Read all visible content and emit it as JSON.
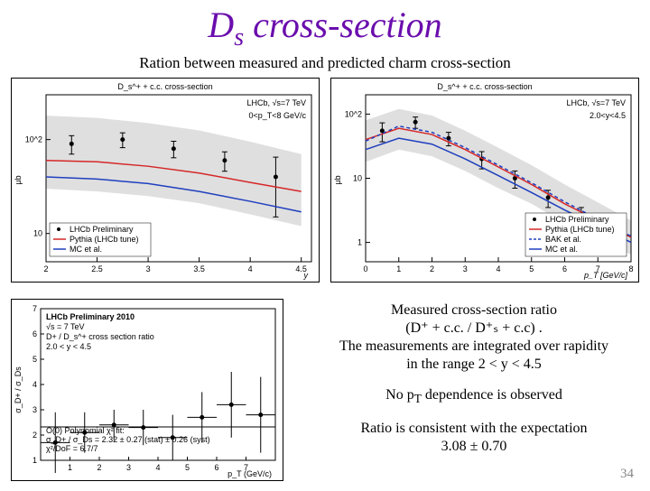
{
  "title_html": "D<sub>s</sub> cross-section",
  "subtitle": "Ration between measured and predicted charm cross-section",
  "page_number": "34",
  "chart_left": {
    "type": "line-scatter",
    "top_title": "D_s^+ + c.c. cross-section",
    "ylabel": "μb",
    "xlabel": "y",
    "yscale": "log",
    "ylim": [
      5,
      300
    ],
    "xlim": [
      2.0,
      4.6
    ],
    "xticks": [
      2,
      2.5,
      3,
      3.5,
      4,
      4.5
    ],
    "header_text": "LHCb, √s=7 TeV",
    "cut_text": "0<p_T<8 GeV/c",
    "band_color": "#d9d9d9",
    "series": [
      {
        "name": "LHCb Preliminary",
        "type": "points",
        "color": "#000000",
        "x": [
          2.25,
          2.75,
          3.25,
          3.75,
          4.25
        ],
        "y": [
          90,
          100,
          80,
          60,
          40
        ],
        "yerr": [
          20,
          18,
          16,
          14,
          25
        ]
      },
      {
        "name": "Pythia (LHCb tune)",
        "type": "line",
        "color": "#d62728",
        "dash": "solid",
        "x": [
          2.0,
          2.5,
          3.0,
          3.5,
          4.0,
          4.5
        ],
        "y": [
          60,
          58,
          52,
          44,
          35,
          28
        ]
      },
      {
        "name": "MC et al.",
        "type": "line",
        "color": "#1f3fbf",
        "dash": "solid",
        "x": [
          2.0,
          2.5,
          3.0,
          3.5,
          4.0,
          4.5
        ],
        "y": [
          40,
          38,
          34,
          28,
          22,
          17
        ]
      }
    ],
    "band": {
      "x": [
        2.0,
        2.5,
        3.0,
        3.5,
        4.0,
        4.5
      ],
      "upper": [
        180,
        170,
        150,
        125,
        95,
        70
      ],
      "lower": [
        30,
        28,
        25,
        21,
        16,
        12
      ]
    },
    "legend_pos": "bottom-left"
  },
  "chart_right": {
    "type": "line-scatter",
    "top_title": "D_s^+ + c.c. cross-section",
    "ylabel": "μb",
    "xlabel": "p_T [GeV/c]",
    "yscale": "log",
    "ylim": [
      0.5,
      200
    ],
    "xlim": [
      0,
      8
    ],
    "xticks": [
      0,
      1,
      2,
      3,
      4,
      5,
      6,
      7,
      8
    ],
    "header_text": "LHCb, √s=7 TeV",
    "cut_text": "2.0<y<4.5",
    "band_color": "#d9d9d9",
    "series": [
      {
        "name": "LHCb Preliminary",
        "type": "points",
        "color": "#000000",
        "x": [
          0.5,
          1.5,
          2.5,
          3.5,
          4.5,
          5.5,
          6.5,
          7.5
        ],
        "y": [
          55,
          75,
          42,
          20,
          10,
          5,
          2.5,
          1.3
        ],
        "yerr": [
          18,
          15,
          10,
          6,
          3,
          1.5,
          1.0,
          0.6
        ]
      },
      {
        "name": "Pythia (LHCb tune)",
        "type": "line",
        "color": "#d62728",
        "dash": "solid",
        "x": [
          0,
          1,
          2,
          3,
          4,
          5,
          6,
          7,
          8
        ],
        "y": [
          40,
          60,
          48,
          28,
          15,
          8,
          4,
          2.2,
          1.2
        ]
      },
      {
        "name": "BAK et al.",
        "type": "line",
        "color": "#1f3fbf",
        "dash": "dashed",
        "x": [
          0,
          1,
          2,
          3,
          4,
          5,
          6,
          7,
          8
        ],
        "y": [
          38,
          65,
          52,
          30,
          16,
          8.5,
          4.3,
          2.3,
          1.25
        ]
      },
      {
        "name": "MC et al.",
        "type": "line",
        "color": "#1f3fbf",
        "dash": "solid",
        "x": [
          0,
          1,
          2,
          3,
          4,
          5,
          6,
          7,
          8
        ],
        "y": [
          28,
          42,
          34,
          20,
          11,
          6,
          3.2,
          1.8,
          1.0
        ]
      }
    ],
    "band": {
      "x": [
        0,
        1,
        2,
        3,
        4,
        5,
        6,
        7,
        8
      ],
      "upper": [
        80,
        120,
        95,
        55,
        30,
        16,
        8,
        4.2,
        2.2
      ],
      "lower": [
        18,
        28,
        22,
        13,
        7,
        4,
        2,
        1.1,
        0.65
      ]
    },
    "legend_pos": "bottom-right"
  },
  "chart_bottom": {
    "type": "scatter",
    "ylabel": "σ_D+ / σ_Ds",
    "xlabel": "p_T (GeV/c)",
    "ylim": [
      1,
      7
    ],
    "xlim": [
      0,
      8
    ],
    "xticks": [
      1,
      2,
      3,
      4,
      5,
      6,
      7
    ],
    "yticks": [
      1,
      2,
      3,
      4,
      5,
      6,
      7
    ],
    "annotations": [
      "LHCb Preliminary 2010",
      "√s = 7 TeV",
      "D+ / D_s^+ cross section ratio",
      "2.0 < y < 4.5"
    ],
    "fit_text": [
      "O(0) Polynomial χ² fit:",
      "σ_D+ / σ_Ds = 2.32 ± 0.27 (stat) ± 0.26 (syst)",
      "χ²/DoF = 6.7/7"
    ],
    "fit_line_y": 2.32,
    "points": {
      "color": "#000000",
      "x": [
        0.5,
        1.5,
        2.5,
        3.5,
        4.5,
        5.5,
        6.5,
        7.5
      ],
      "y": [
        1.7,
        2.1,
        2.4,
        2.3,
        1.9,
        2.7,
        3.2,
        2.8
      ],
      "yerr": [
        1.2,
        0.8,
        0.6,
        0.7,
        0.9,
        1.0,
        1.3,
        1.5
      ],
      "xerr": [
        0.5,
        0.5,
        0.5,
        0.5,
        0.5,
        0.5,
        0.5,
        0.5
      ]
    }
  },
  "text_blocks": {
    "b1_line1": "Measured cross-section ratio",
    "b1_line2": "(D⁺ + c.c. /  D⁺ₛ + c.c)  .",
    "b1_line3": "The measurements are integrated over rapidity",
    "b1_line4": "in the range 2 < y < 4.5",
    "b2": "No p_T dependence is observed",
    "b3_line1": "Ratio is consistent with the expectation",
    "b3_line2": "3.08 ± 0.70"
  },
  "colors": {
    "title": "#6a0dad",
    "red": "#d62728",
    "blue": "#1f3fbf",
    "band": "#d9d9d9",
    "bg": "#ffffff"
  }
}
